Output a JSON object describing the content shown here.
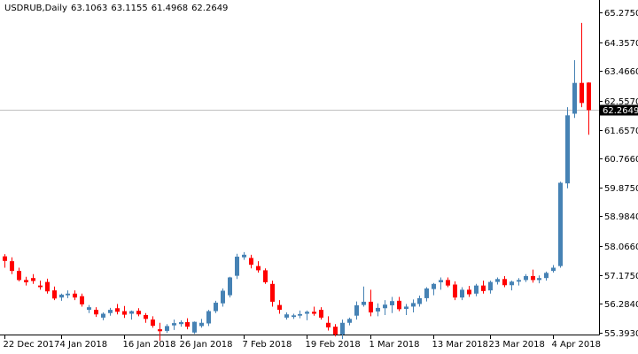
{
  "header": {
    "symbol": "USDRUB,Daily",
    "open": "63.1063",
    "high": "63.1155",
    "low": "61.4968",
    "close": "62.2649"
  },
  "colors": {
    "bull": "#4682b4",
    "bear": "#ff0000",
    "axis": "#000000",
    "price_line": "#c0c0c0",
    "price_tag_bg": "#000000",
    "price_tag_fg": "#ffffff"
  },
  "chart_data": {
    "type": "candlestick",
    "title": "USDRUB,Daily",
    "xlabel": "",
    "ylabel": "",
    "ylim": [
      55.393,
      65.275
    ],
    "y_ticks": [
      "65.2750",
      "64.3570",
      "63.4660",
      "62.5570",
      "61.6570",
      "60.7660",
      "59.8750",
      "58.9840",
      "58.0660",
      "57.1750",
      "56.2840",
      "55.3930"
    ],
    "x_ticks": [
      "22 Dec 2017",
      "4 Jan 2018",
      "16 Jan 2018",
      "26 Jan 2018",
      "7 Feb 2018",
      "19 Feb 2018",
      "1 Mar 2018",
      "13 Mar 2018",
      "23 Mar 2018",
      "4 Apr 2018"
    ],
    "x_tick_index": [
      0,
      8,
      17,
      25,
      34,
      43,
      52,
      61,
      69,
      78
    ],
    "current_price": "62.2649",
    "candles": [
      [
        57.75,
        57.82,
        57.4,
        57.61
      ],
      [
        57.6,
        57.72,
        57.2,
        57.3
      ],
      [
        57.3,
        57.4,
        56.98,
        57.02
      ],
      [
        57.02,
        57.12,
        56.85,
        56.95
      ],
      [
        57.08,
        57.2,
        56.9,
        56.99
      ],
      [
        56.85,
        57.0,
        56.72,
        56.8
      ],
      [
        56.96,
        57.06,
        56.6,
        56.67
      ],
      [
        56.7,
        56.82,
        56.4,
        56.45
      ],
      [
        56.48,
        56.6,
        56.38,
        56.57
      ],
      [
        56.55,
        56.7,
        56.46,
        56.6
      ],
      [
        56.6,
        56.7,
        56.4,
        56.48
      ],
      [
        56.52,
        56.6,
        56.2,
        56.27
      ],
      [
        56.1,
        56.25,
        56.0,
        56.18
      ],
      [
        56.1,
        56.18,
        55.88,
        55.96
      ],
      [
        55.86,
        56.02,
        55.78,
        55.98
      ],
      [
        56.0,
        56.16,
        55.92,
        56.1
      ],
      [
        56.15,
        56.28,
        55.96,
        56.04
      ],
      [
        56.06,
        56.22,
        55.85,
        55.95
      ],
      [
        55.98,
        56.08,
        55.8,
        56.06
      ],
      [
        56.07,
        56.15,
        55.9,
        55.96
      ],
      [
        55.94,
        56.0,
        55.7,
        55.82
      ],
      [
        55.8,
        55.9,
        55.55,
        55.61
      ],
      [
        55.5,
        55.7,
        55.14,
        55.44
      ],
      [
        55.45,
        55.66,
        55.39,
        55.6
      ],
      [
        55.62,
        55.8,
        55.48,
        55.69
      ],
      [
        55.66,
        55.78,
        55.58,
        55.72
      ],
      [
        55.72,
        55.84,
        55.5,
        55.58
      ],
      [
        55.4,
        55.74,
        55.36,
        55.73
      ],
      [
        55.6,
        55.82,
        55.55,
        55.7
      ],
      [
        55.68,
        56.1,
        55.6,
        56.06
      ],
      [
        56.06,
        56.38,
        56.0,
        56.32
      ],
      [
        56.3,
        56.76,
        56.2,
        56.69
      ],
      [
        56.55,
        57.12,
        56.48,
        57.1
      ],
      [
        57.15,
        57.83,
        57.05,
        57.74
      ],
      [
        57.72,
        57.88,
        57.64,
        57.8
      ],
      [
        57.7,
        57.8,
        57.38,
        57.49
      ],
      [
        57.45,
        57.6,
        57.25,
        57.32
      ],
      [
        57.32,
        57.38,
        56.9,
        56.95
      ],
      [
        56.9,
        57.0,
        56.2,
        56.35
      ],
      [
        56.25,
        56.4,
        55.98,
        56.1
      ],
      [
        55.86,
        56.02,
        55.8,
        55.96
      ],
      [
        55.88,
        55.98,
        55.82,
        55.93
      ],
      [
        55.92,
        56.08,
        55.84,
        55.97
      ],
      [
        55.98,
        56.08,
        55.78,
        56.04
      ],
      [
        56.04,
        56.2,
        55.92,
        55.98
      ],
      [
        56.1,
        56.18,
        55.8,
        55.86
      ],
      [
        55.7,
        55.9,
        55.46,
        55.56
      ],
      [
        55.58,
        55.66,
        55.28,
        55.34
      ],
      [
        55.34,
        55.8,
        55.2,
        55.7
      ],
      [
        55.7,
        55.86,
        55.62,
        55.82
      ],
      [
        55.92,
        56.36,
        55.8,
        56.24
      ],
      [
        56.25,
        56.82,
        56.2,
        56.35
      ],
      [
        56.35,
        56.72,
        55.9,
        56.02
      ],
      [
        56.05,
        56.3,
        55.9,
        56.16
      ],
      [
        56.15,
        56.4,
        55.94,
        56.26
      ],
      [
        56.24,
        56.5,
        56.0,
        56.37
      ],
      [
        56.38,
        56.5,
        56.06,
        56.12
      ],
      [
        56.13,
        56.28,
        55.94,
        56.2
      ],
      [
        56.2,
        56.42,
        56.02,
        56.31
      ],
      [
        56.28,
        56.54,
        56.2,
        56.46
      ],
      [
        56.46,
        56.8,
        56.36,
        56.76
      ],
      [
        56.74,
        56.93,
        56.55,
        56.9
      ],
      [
        56.95,
        57.1,
        56.72,
        57.02
      ],
      [
        57.02,
        57.1,
        56.8,
        56.85
      ],
      [
        56.88,
        56.98,
        56.4,
        56.48
      ],
      [
        56.48,
        56.8,
        56.4,
        56.72
      ],
      [
        56.72,
        56.84,
        56.5,
        56.58
      ],
      [
        56.6,
        56.9,
        56.52,
        56.85
      ],
      [
        56.85,
        57.0,
        56.6,
        56.68
      ],
      [
        56.7,
        57.0,
        56.6,
        56.96
      ],
      [
        56.96,
        57.1,
        56.88,
        57.05
      ],
      [
        57.05,
        57.14,
        56.8,
        56.86
      ],
      [
        56.86,
        57.0,
        56.7,
        56.97
      ],
      [
        56.97,
        57.08,
        56.85,
        57.02
      ],
      [
        57.02,
        57.2,
        56.96,
        57.14
      ],
      [
        57.14,
        57.34,
        56.94,
        57.02
      ],
      [
        57.02,
        57.16,
        56.92,
        57.08
      ],
      [
        57.08,
        57.28,
        57.0,
        57.24
      ],
      [
        57.3,
        57.48,
        57.25,
        57.4
      ],
      [
        57.45,
        60.05,
        57.4,
        60.02
      ],
      [
        60.0,
        62.35,
        59.85,
        62.1
      ],
      [
        62.15,
        63.8,
        62.02,
        63.1
      ],
      [
        63.1,
        64.95,
        62.35,
        62.48
      ],
      [
        63.11,
        63.12,
        61.5,
        62.26
      ]
    ]
  }
}
